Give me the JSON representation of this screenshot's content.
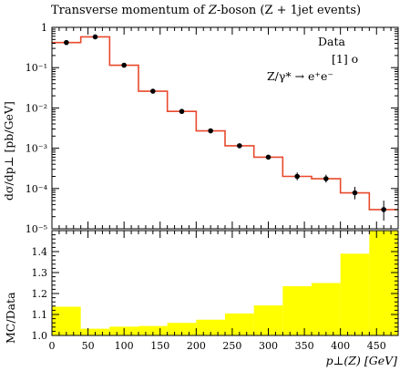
{
  "chart_data": [
    {
      "type": "line",
      "title_prefix": "Transverse momentum of ",
      "title_var": "Z",
      "title_suffix": "-boson (Z + 1jet events)",
      "ylabel": "dσ/dp⊥ [pb/GeV]",
      "ylog": true,
      "ylim": [
        1e-05,
        1
      ],
      "yticks": [
        {
          "v": 1,
          "label": "1"
        },
        {
          "v": 0.1,
          "label": "10⁻¹"
        },
        {
          "v": 0.01,
          "label": "10⁻²"
        },
        {
          "v": 0.001,
          "label": "10⁻³"
        },
        {
          "v": 0.0001,
          "label": "10⁻⁴"
        },
        {
          "v": 1e-05,
          "label": "10⁻⁵"
        }
      ],
      "xlim": [
        0,
        480
      ],
      "series": [
        {
          "name": "Data",
          "kind": "points",
          "color": "#000000",
          "x": [
            20,
            60,
            100,
            140,
            180,
            220,
            260,
            300,
            340,
            380,
            420,
            460
          ],
          "y": [
            0.42,
            0.58,
            0.115,
            0.026,
            0.0082,
            0.0027,
            0.00115,
            0.0006,
            0.0002,
            0.000175,
            7.8e-05,
            3e-05
          ],
          "err_lo": [
            0.4,
            0.56,
            0.111,
            0.025,
            0.0078,
            0.00255,
            0.00108,
            0.00056,
            0.00016,
            0.00014,
            5.4e-05,
            1.6e-05
          ],
          "err_hi": [
            0.44,
            0.6,
            0.119,
            0.027,
            0.0086,
            0.00285,
            0.00122,
            0.00064,
            0.00025,
            0.00022,
            0.00011,
            5e-05
          ]
        },
        {
          "name": "[1] o",
          "kind": "histogram",
          "color": "#e8492c",
          "edges": [
            0,
            40,
            80,
            120,
            160,
            200,
            240,
            280,
            320,
            360,
            400,
            440,
            480
          ],
          "values": [
            0.42,
            0.58,
            0.115,
            0.026,
            0.0082,
            0.0027,
            0.00115,
            0.0006,
            0.0002,
            0.000175,
            7.8e-05,
            3e-05
          ]
        }
      ],
      "process_label": "Z/γ* → e⁺e⁻"
    },
    {
      "type": "bar",
      "ylabel": "MC/Data",
      "xlabel": "p⊥(Z) [GeV]",
      "ylim": [
        1.0,
        1.5
      ],
      "yticks": [
        1.0,
        1.1,
        1.2,
        1.3,
        1.4
      ],
      "xlim": [
        0,
        480
      ],
      "xticks": [
        0,
        50,
        100,
        150,
        200,
        250,
        300,
        350,
        400,
        450
      ],
      "fill_color": "#ffff00",
      "edges": [
        0,
        40,
        80,
        120,
        160,
        200,
        240,
        280,
        320,
        360,
        400,
        440,
        480
      ],
      "band_lo": [
        1.0,
        1.0,
        1.0,
        1.0,
        1.0,
        1.0,
        1.0,
        1.0,
        1.0,
        1.0,
        1.0,
        1.0
      ],
      "band_hi": [
        1.137,
        1.032,
        1.042,
        1.045,
        1.06,
        1.075,
        1.105,
        1.143,
        1.235,
        1.25,
        1.39,
        1.5
      ]
    }
  ],
  "legend_position": "top-right"
}
